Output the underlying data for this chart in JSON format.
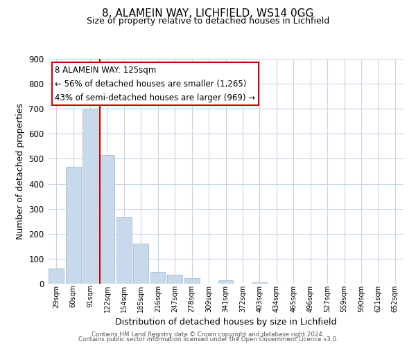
{
  "title1": "8, ALAMEIN WAY, LICHFIELD, WS14 0GG",
  "title2": "Size of property relative to detached houses in Lichfield",
  "xlabel": "Distribution of detached houses by size in Lichfield",
  "ylabel": "Number of detached properties",
  "bar_labels": [
    "29sqm",
    "60sqm",
    "91sqm",
    "122sqm",
    "154sqm",
    "185sqm",
    "216sqm",
    "247sqm",
    "278sqm",
    "309sqm",
    "341sqm",
    "372sqm",
    "403sqm",
    "434sqm",
    "465sqm",
    "496sqm",
    "527sqm",
    "559sqm",
    "590sqm",
    "621sqm",
    "652sqm"
  ],
  "bar_values": [
    60,
    467,
    700,
    515,
    265,
    160,
    47,
    35,
    22,
    0,
    13,
    0,
    5,
    0,
    0,
    0,
    0,
    0,
    0,
    0,
    0
  ],
  "bar_color": "#c9d9ec",
  "bar_edge_color": "#aabbcc",
  "vline_x": 3,
  "vline_color": "#cc0000",
  "ylim": [
    0,
    900
  ],
  "yticks": [
    0,
    100,
    200,
    300,
    400,
    500,
    600,
    700,
    800,
    900
  ],
  "annotation_title": "8 ALAMEIN WAY: 125sqm",
  "annotation_line1": "← 56% of detached houses are smaller (1,265)",
  "annotation_line2": "43% of semi-detached houses are larger (969) →",
  "annotation_box_color": "#ffffff",
  "annotation_box_edge": "#cc0000",
  "footer1": "Contains HM Land Registry data © Crown copyright and database right 2024.",
  "footer2": "Contains public sector information licensed under the Open Government Licence v3.0.",
  "bg_color": "#ffffff",
  "grid_color": "#c8d4e4"
}
